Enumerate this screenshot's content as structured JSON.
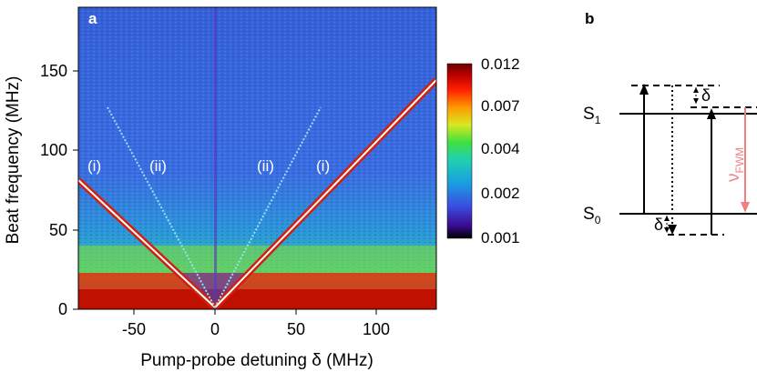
{
  "panel_a": {
    "label": "a",
    "chart_data": {
      "type": "heatmap",
      "xlabel": "Pump-probe detuning δ (MHz)",
      "ylabel": "Beat frequency (MHz)",
      "xlim": [
        -85,
        135
      ],
      "ylim": [
        0,
        190
      ],
      "xticks": [
        -50,
        0,
        50,
        100
      ],
      "yticks": [
        0,
        50,
        100,
        150
      ],
      "xtick_labels": [
        "-50",
        "0",
        "50",
        "100"
      ],
      "ytick_labels": [
        "0",
        "50",
        "100",
        "150"
      ],
      "colorbar": {
        "scale": "log",
        "range": [
          0.001,
          0.012
        ],
        "ticks": [
          "0.012",
          "0.007",
          "0.004",
          "0.002",
          "0.001"
        ],
        "colors": [
          "#000000",
          "#3a0a8c",
          "#3b4be0",
          "#1aa0e0",
          "#20d0b0",
          "#40e040",
          "#d8e820",
          "#ff9a00",
          "#ff2000",
          "#c00000",
          "#6a0000"
        ]
      },
      "features": [
        {
          "label": "(i)",
          "x": -72,
          "y": 85,
          "slope": "|δ|"
        },
        {
          "label": "(ii)",
          "x": -35,
          "y": 85,
          "slope": "|δ|/2"
        },
        {
          "label": "(ii)",
          "x": 34,
          "y": 85,
          "slope": "|δ|/2"
        },
        {
          "label": "(i)",
          "x": 70,
          "y": 85,
          "slope": "|δ|"
        }
      ],
      "background_color": "#3a6ae0",
      "low_freq_band_color": "#d82010",
      "line_color": "#ffffff"
    }
  },
  "panel_b": {
    "label": "b",
    "levels": [
      {
        "name": "S",
        "sub": "1"
      },
      {
        "name": "S",
        "sub": "0"
      }
    ],
    "detuning_label": "δ",
    "fwm_label": {
      "main": "ν",
      "sub": "FWM"
    },
    "fwm_color": "#f08080"
  }
}
